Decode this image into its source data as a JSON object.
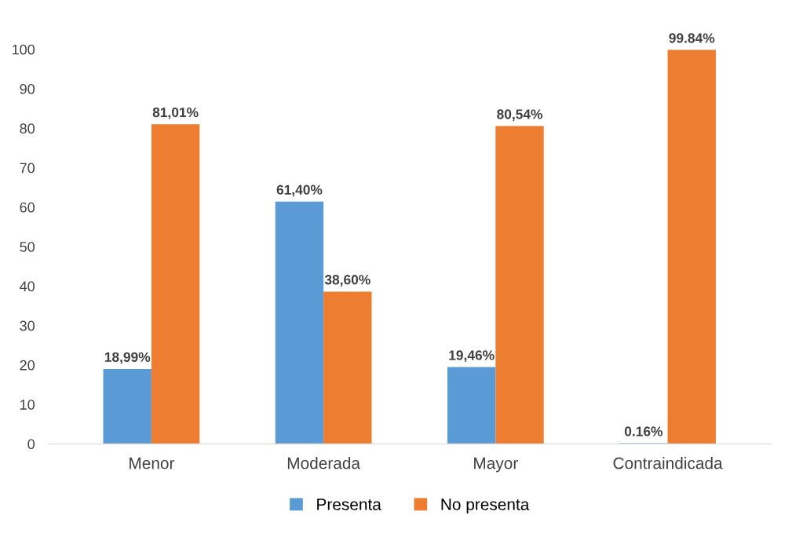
{
  "chart_data": {
    "type": "bar",
    "categories": [
      "Menor",
      "Moderada",
      "Mayor",
      "Contraindicada"
    ],
    "series": [
      {
        "name": "Presenta",
        "color": "#5b9bd5",
        "values": [
          18.99,
          61.4,
          19.46,
          0.16
        ],
        "value_labels": [
          "18,99%",
          "61,40%",
          "19,46%",
          "0.16%"
        ]
      },
      {
        "name": "No presenta",
        "color": "#ed7d31",
        "values": [
          81.01,
          38.6,
          80.54,
          99.84
        ],
        "value_labels": [
          "81,01%",
          "38,60%",
          "80,54%",
          "99.84%"
        ]
      }
    ],
    "ylim": [
      0,
      100
    ],
    "yticks": [
      0,
      10,
      20,
      30,
      40,
      50,
      60,
      70,
      80,
      90,
      100
    ],
    "grid": false,
    "legend": "bottom"
  }
}
